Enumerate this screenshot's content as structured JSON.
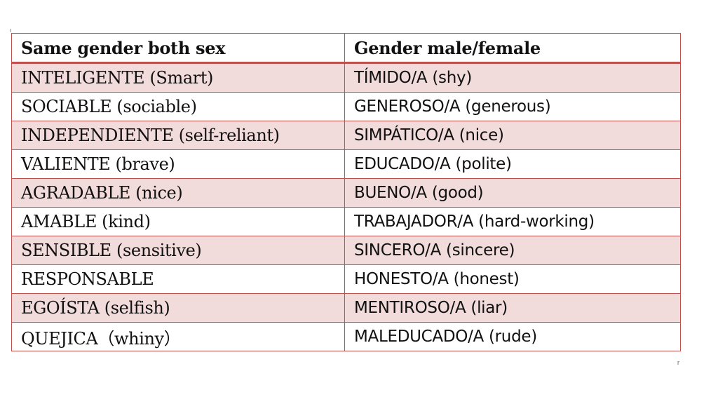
{
  "table": {
    "headers": [
      "Same gender both sex",
      "Gender male/female"
    ],
    "rows": [
      [
        "INTELIGENTE (Smart)",
        "TÍMIDO/A (shy)"
      ],
      [
        "SOCIABLE (sociable)",
        "GENEROSO/A (generous)"
      ],
      [
        "INDEPENDIENTE (self-reliant)",
        "SIMPÁTICO/A (nice)"
      ],
      [
        "VALIENTE (brave)",
        "EDUCADO/A (polite)"
      ],
      [
        "AGRADABLE (nice)",
        "BUENO/A (good)"
      ],
      [
        "AMABLE (kind)",
        "TRABAJADOR/A (hard-working)"
      ],
      [
        "SENSIBLE (sensitive)",
        "SINCERO/A (sincere)"
      ],
      [
        "RESPONSABLE",
        "HONESTO/A (honest)"
      ],
      [
        "EGOÍSTA (selfish)",
        "MENTIROSO/A (liar)"
      ],
      [
        "QUEJICA（whiny）",
        "MALEDUCADO/A (rude)"
      ]
    ],
    "border_color": "#c0504d",
    "band_color": "#f2dbdb"
  }
}
